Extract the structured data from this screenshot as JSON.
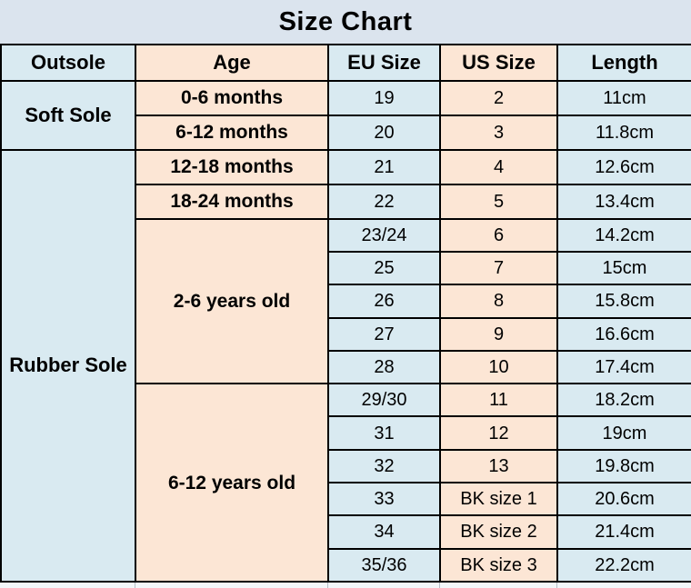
{
  "title": "Size Chart",
  "columns": [
    "Outsole",
    "Age",
    "EU Size",
    "US Size",
    "Length"
  ],
  "sections": [
    {
      "outsole": "Soft Sole",
      "groups": [
        {
          "age": "0-6 months",
          "rows": [
            [
              "19",
              "2",
              "11cm"
            ]
          ]
        },
        {
          "age": "6-12 months",
          "rows": [
            [
              "20",
              "3",
              "11.8cm"
            ]
          ]
        }
      ]
    },
    {
      "outsole": "Rubber Sole",
      "groups": [
        {
          "age": "12-18 months",
          "rows": [
            [
              "21",
              "4",
              "12.6cm"
            ]
          ]
        },
        {
          "age": "18-24 months",
          "rows": [
            [
              "22",
              "5",
              "13.4cm"
            ]
          ]
        },
        {
          "age": "2-6 years old",
          "rows": [
            [
              "23/24",
              "6",
              "14.2cm"
            ],
            [
              "25",
              "7",
              "15cm"
            ],
            [
              "26",
              "8",
              "15.8cm"
            ],
            [
              "27",
              "9",
              "16.6cm"
            ],
            [
              "28",
              "10",
              "17.4cm"
            ]
          ]
        },
        {
          "age": "6-12 years old",
          "rows": [
            [
              "29/30",
              "11",
              "18.2cm"
            ],
            [
              "31",
              "12",
              "19cm"
            ],
            [
              "32",
              "13",
              "19.8cm"
            ],
            [
              "33",
              "BK size 1",
              "20.6cm"
            ],
            [
              "34",
              "BK size 2",
              "21.4cm"
            ],
            [
              "35/36",
              "BK size 3",
              "22.2cm"
            ]
          ]
        }
      ]
    }
  ],
  "colors": {
    "page_background": "#dbe4ee",
    "cell_blue": "#d9eaf1",
    "cell_peach": "#fce6d5",
    "border": "#000000",
    "text": "#000000"
  },
  "chart_data": {
    "type": "table",
    "title": "Size Chart",
    "columns": [
      "Outsole",
      "Age",
      "EU Size",
      "US Size",
      "Length"
    ],
    "rows": [
      [
        "Soft Sole",
        "0-6 months",
        "19",
        "2",
        "11cm"
      ],
      [
        "Soft Sole",
        "6-12 months",
        "20",
        "3",
        "11.8cm"
      ],
      [
        "Rubber Sole",
        "12-18 months",
        "21",
        "4",
        "12.6cm"
      ],
      [
        "Rubber Sole",
        "18-24 months",
        "22",
        "5",
        "13.4cm"
      ],
      [
        "Rubber Sole",
        "2-6 years old",
        "23/24",
        "6",
        "14.2cm"
      ],
      [
        "Rubber Sole",
        "2-6 years old",
        "25",
        "7",
        "15cm"
      ],
      [
        "Rubber Sole",
        "2-6 years old",
        "26",
        "8",
        "15.8cm"
      ],
      [
        "Rubber Sole",
        "2-6 years old",
        "27",
        "9",
        "16.6cm"
      ],
      [
        "Rubber Sole",
        "2-6 years old",
        "28",
        "10",
        "17.4cm"
      ],
      [
        "Rubber Sole",
        "6-12 years old",
        "29/30",
        "11",
        "18.2cm"
      ],
      [
        "Rubber Sole",
        "6-12 years old",
        "31",
        "12",
        "19cm"
      ],
      [
        "Rubber Sole",
        "6-12 years old",
        "32",
        "13",
        "19.8cm"
      ],
      [
        "Rubber Sole",
        "6-12 years old",
        "33",
        "BK size 1",
        "20.6cm"
      ],
      [
        "Rubber Sole",
        "6-12 years old",
        "34",
        "BK size 2",
        "21.4cm"
      ],
      [
        "Rubber Sole",
        "6-12 years old",
        "35/36",
        "BK size 3",
        "22.2cm"
      ]
    ]
  }
}
